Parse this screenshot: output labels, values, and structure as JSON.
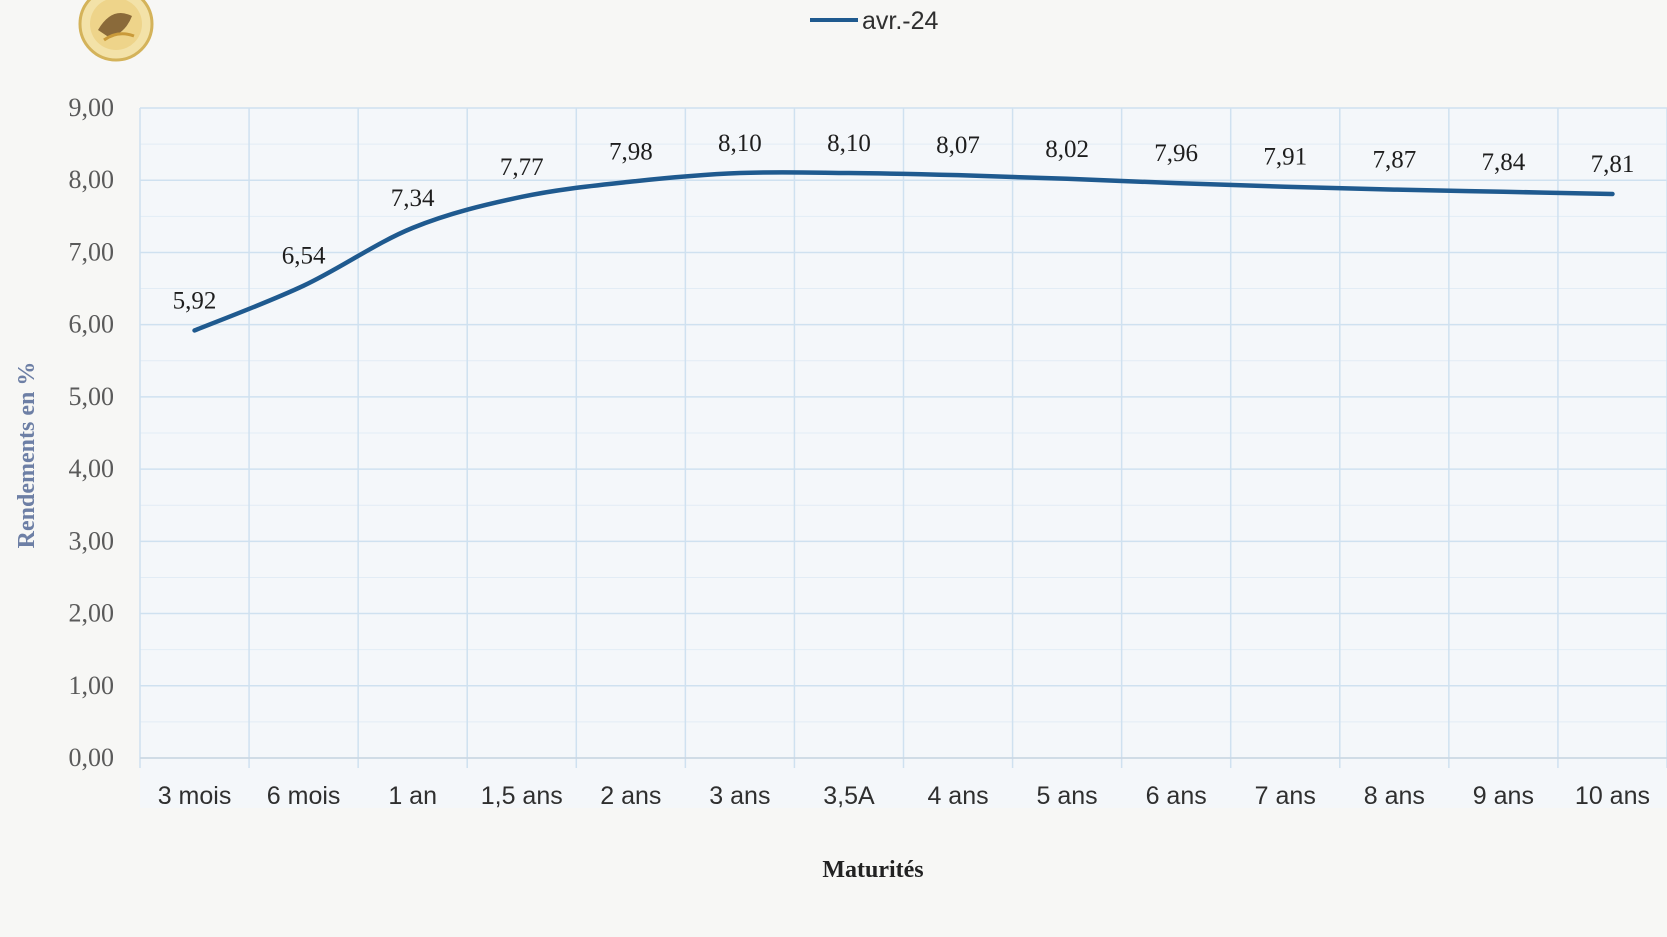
{
  "chart_data": {
    "type": "line",
    "title": "",
    "xlabel": "Maturités",
    "ylabel": "Rendements en %",
    "ylim": [
      0,
      9
    ],
    "yticks": [
      "0,00",
      "1,00",
      "2,00",
      "3,00",
      "4,00",
      "5,00",
      "6,00",
      "7,00",
      "8,00",
      "9,00"
    ],
    "categories": [
      "3 mois",
      "6 mois",
      "1 an",
      "1,5 ans",
      "2 ans",
      "3 ans",
      "3,5A",
      "4 ans",
      "5 ans",
      "6 ans",
      "7 ans",
      "8 ans",
      "9 ans",
      "10 ans"
    ],
    "series": [
      {
        "name": "avr.-24",
        "color": "#1f5a8f",
        "values": [
          5.92,
          6.54,
          7.34,
          7.77,
          7.98,
          8.1,
          8.1,
          8.07,
          8.02,
          7.96,
          7.91,
          7.87,
          7.84,
          7.81
        ],
        "labels": [
          "5,92",
          "6,54",
          "7,34",
          "7,77",
          "7,98",
          "8,10",
          "8,10",
          "8,07",
          "8,02",
          "7,96",
          "7,91",
          "7,87",
          "7,84",
          "7,81"
        ]
      }
    ],
    "legend": {
      "position": "top-center"
    },
    "grid": true,
    "grid_color": "#cfe1f0"
  },
  "logo": {
    "icon": "wheat-emblem-icon"
  }
}
